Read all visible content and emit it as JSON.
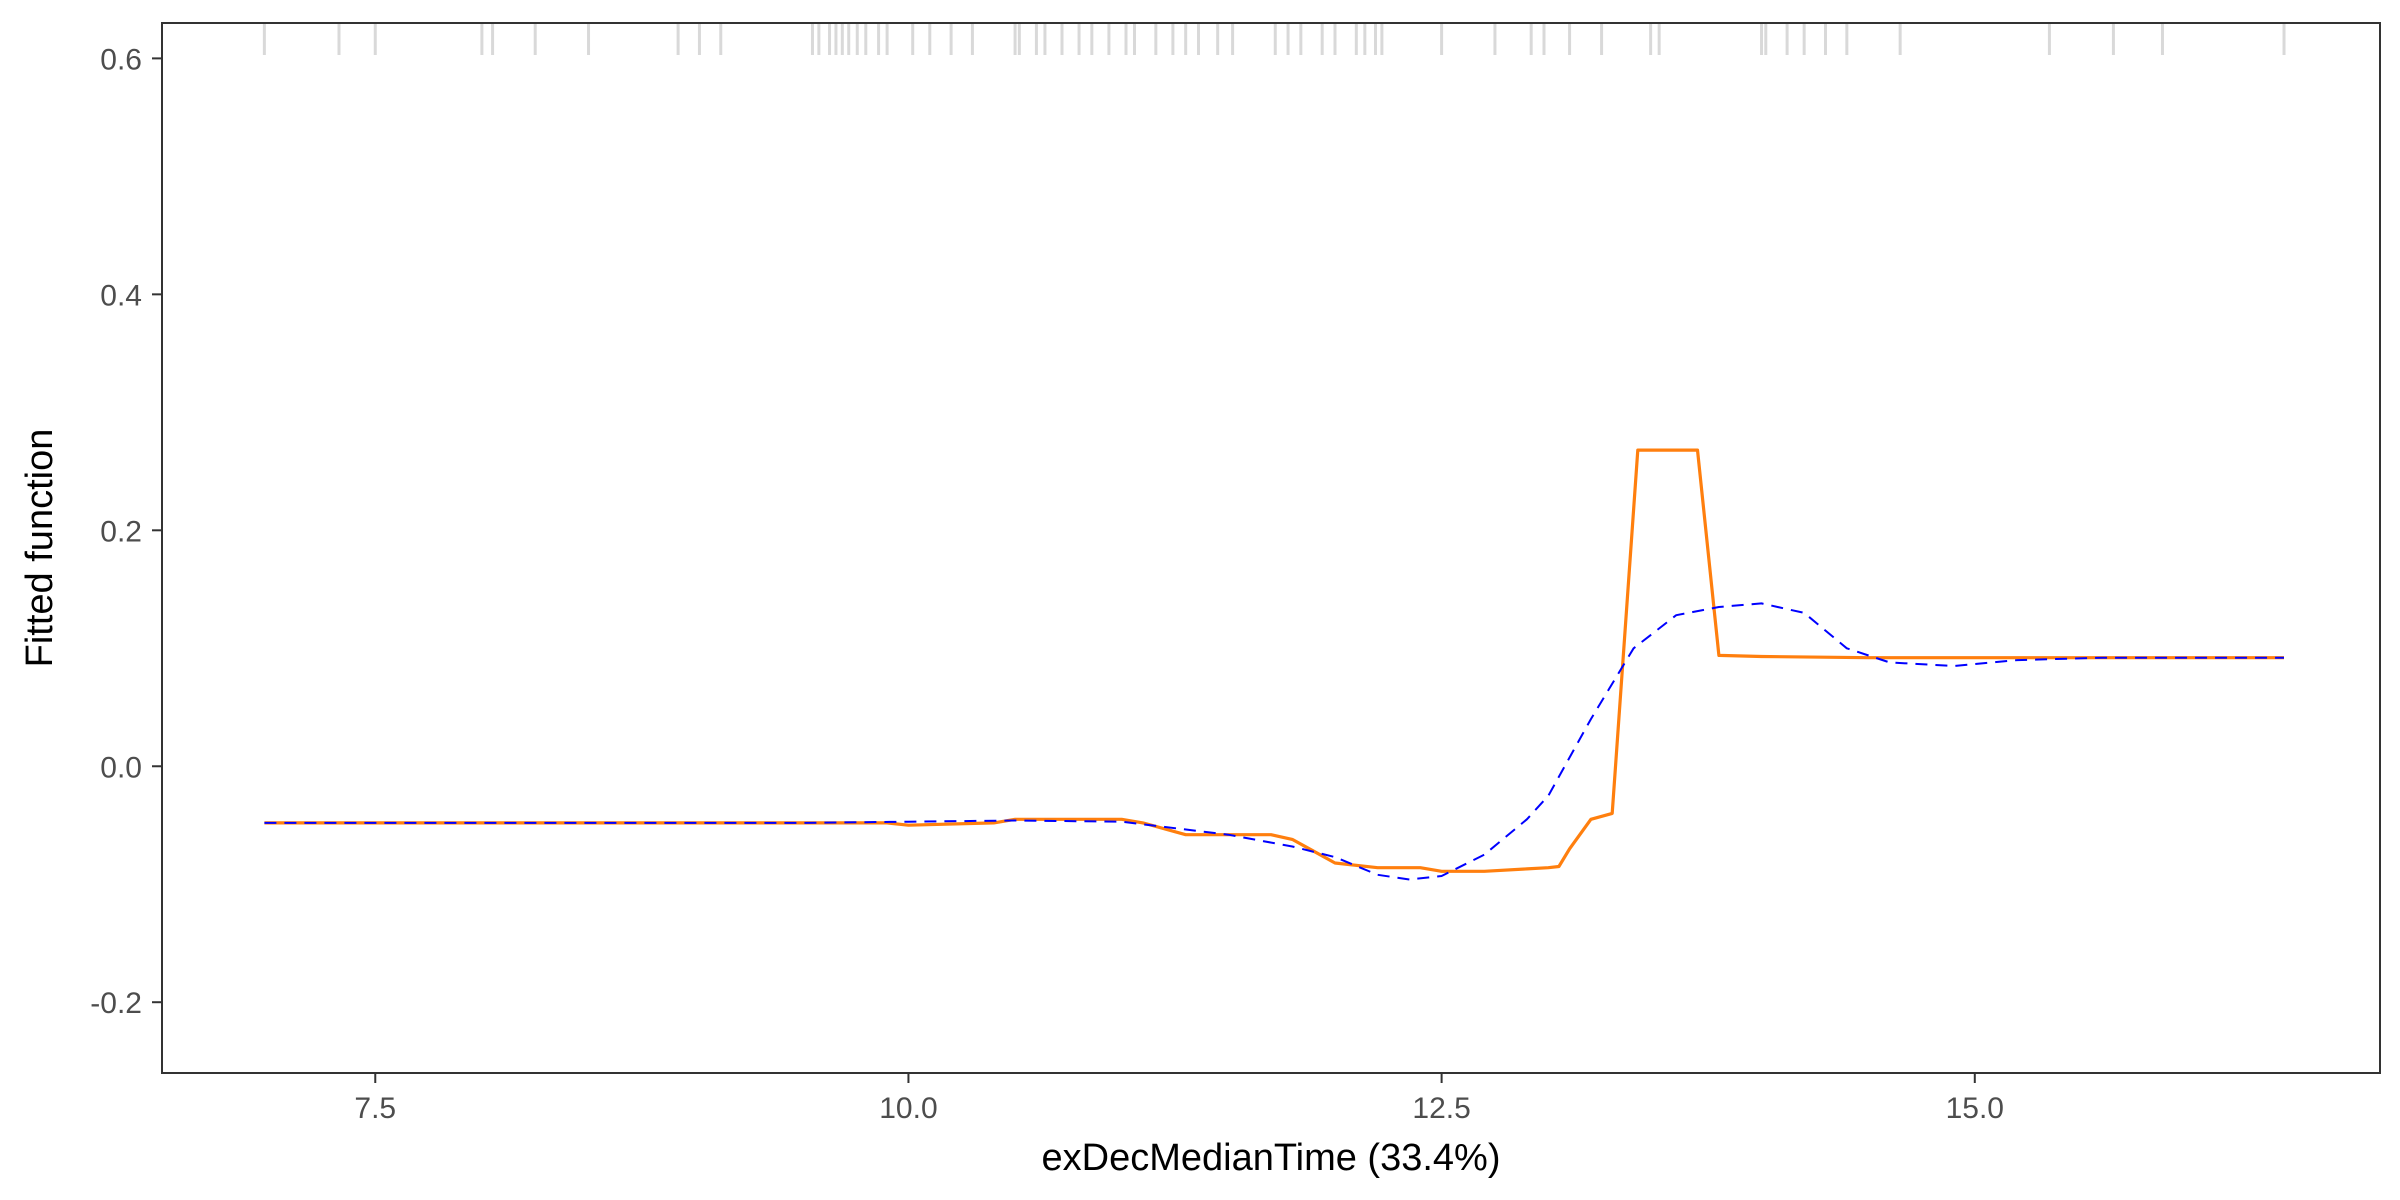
{
  "chart_data": {
    "type": "line",
    "title": "",
    "xlabel": "exDecMedianTime  (33.4%)",
    "ylabel": "Fitted function",
    "xlim": [
      6.5,
      16.9
    ],
    "ylim": [
      -0.26,
      0.63
    ],
    "x_ticks": [
      7.5,
      10.0,
      12.5,
      15.0
    ],
    "x_tick_labels": [
      "7.5",
      "10.0",
      "12.5",
      "15.0"
    ],
    "y_ticks": [
      -0.2,
      0.0,
      0.2,
      0.4,
      0.6
    ],
    "y_tick_labels": [
      "-0.2",
      "0.0",
      "0.2",
      "0.4",
      "0.6"
    ],
    "grid": false,
    "legend": "none",
    "series": [
      {
        "color": "#ff7f0e",
        "style": "solid",
        "x": [
          6.98,
          9.3,
          9.9,
          10.0,
          10.4,
          10.5,
          11.0,
          11.1,
          11.3,
          11.7,
          11.8,
          11.9,
          12.0,
          12.2,
          12.4,
          12.5,
          12.7,
          12.9,
          13.0,
          13.05,
          13.1,
          13.2,
          13.3,
          13.42,
          13.7,
          13.8,
          14.0,
          14.5,
          15.0,
          16.45
        ],
        "y": [
          -0.048,
          -0.048,
          -0.048,
          -0.05,
          -0.048,
          -0.045,
          -0.045,
          -0.048,
          -0.058,
          -0.058,
          -0.062,
          -0.072,
          -0.082,
          -0.086,
          -0.086,
          -0.089,
          -0.089,
          -0.087,
          -0.086,
          -0.085,
          -0.07,
          -0.045,
          -0.04,
          0.268,
          0.268,
          0.094,
          0.093,
          0.092,
          0.092,
          0.092
        ]
      },
      {
        "color": "#0000ff",
        "style": "dashed",
        "x": [
          6.98,
          9.5,
          10.0,
          10.5,
          11.0,
          11.5,
          11.8,
          12.0,
          12.2,
          12.35,
          12.5,
          12.7,
          12.9,
          13.0,
          13.2,
          13.4,
          13.6,
          13.8,
          14.0,
          14.2,
          14.4,
          14.6,
          14.9,
          15.2,
          15.6,
          16.45
        ],
        "y": [
          -0.048,
          -0.048,
          -0.047,
          -0.046,
          -0.047,
          -0.058,
          -0.068,
          -0.077,
          -0.092,
          -0.096,
          -0.093,
          -0.075,
          -0.045,
          -0.025,
          0.04,
          0.1,
          0.128,
          0.135,
          0.138,
          0.13,
          0.1,
          0.088,
          0.085,
          0.09,
          0.092,
          0.092
        ]
      }
    ],
    "rug_x": [
      6.98,
      7.33,
      7.5,
      8.0,
      8.05,
      8.25,
      8.5,
      8.92,
      9.02,
      9.12,
      9.55,
      9.58,
      9.63,
      9.66,
      9.69,
      9.72,
      9.76,
      9.8,
      9.86,
      9.9,
      10.02,
      10.1,
      10.2,
      10.3,
      10.5,
      10.52,
      10.6,
      10.64,
      10.72,
      10.8,
      10.86,
      10.94,
      11.02,
      11.06,
      11.16,
      11.24,
      11.3,
      11.36,
      11.45,
      11.52,
      11.72,
      11.78,
      11.84,
      11.94,
      12.0,
      12.1,
      12.14,
      12.19,
      12.22,
      12.5,
      12.75,
      12.92,
      12.98,
      13.1,
      13.25,
      13.48,
      13.52,
      14.0,
      14.02,
      14.12,
      14.2,
      14.3,
      14.4,
      14.65,
      15.35,
      15.65,
      15.88,
      16.45
    ],
    "rug_color": "#d9d9d9"
  }
}
